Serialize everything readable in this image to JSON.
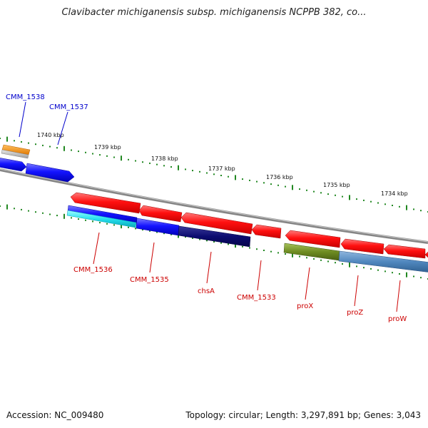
{
  "title": "Clavibacter michiganensis subsp. michiganensis NCPPB 382, co...",
  "footer": {
    "accession": "Accession: NC_009480",
    "summary": "Topology: circular; Length: 3,297,891 bp; Genes: 3,043"
  },
  "colors": {
    "forward_label": "#0000cc",
    "reverse_label": "#cc0000",
    "backbone": "#8c8c8c",
    "tick": "#228822",
    "forward_gene": "#1a1aff",
    "reverse_gene": "#ff1a1a"
  },
  "scale_labels": [
    "1740 kbp",
    "1739 kbp",
    "1738 kbp",
    "1737 kbp",
    "1736 kbp",
    "1735 kbp",
    "1734 kbp"
  ],
  "genes": [
    {
      "name": "CMM_1538",
      "strand": "forward",
      "color": "#3344dd",
      "shown_label": true
    },
    {
      "name": "CMM_1537",
      "strand": "forward",
      "color": "#3344dd",
      "shown_label": true
    },
    {
      "name": "CMM_1536",
      "strand": "reverse",
      "color": "#dd2222",
      "shown_label": true
    },
    {
      "name": "CMM_1535",
      "strand": "reverse",
      "color": "#dd2222",
      "shown_label": true
    },
    {
      "name": "chsA",
      "strand": "reverse",
      "color": "#dd2222",
      "shown_label": true
    },
    {
      "name": "CMM_1533",
      "strand": "reverse",
      "color": "#dd2222",
      "shown_label": true
    },
    {
      "name": "proX",
      "strand": "reverse",
      "color": "#dd2222",
      "shown_label": true
    },
    {
      "name": "proZ",
      "strand": "reverse",
      "color": "#dd2222",
      "shown_label": true
    },
    {
      "name": "proW",
      "strand": "reverse",
      "color": "#dd2222",
      "shown_label": true
    }
  ]
}
